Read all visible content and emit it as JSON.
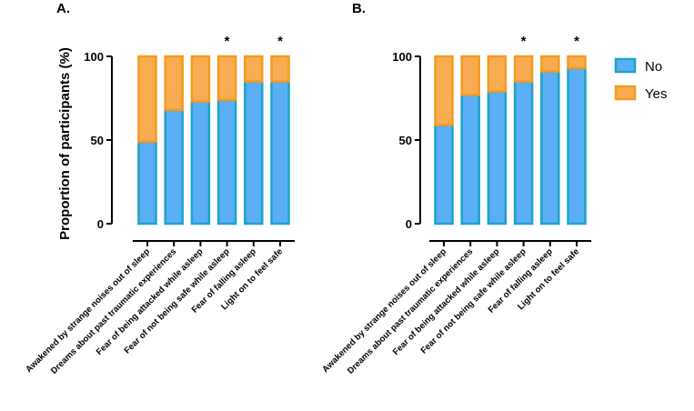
{
  "chart_data": [
    {
      "type": "bar",
      "stacked": true,
      "panel_label": "A.",
      "ylabel": "Proportion of participants (%)",
      "ylim": [
        0,
        100
      ],
      "yticks": [
        "0",
        "50",
        "100"
      ],
      "categories": [
        "Awakened by strange noises out of sleep",
        "Dreams about past traumatic experiences",
        "Fear of being attacked while asleep",
        "Fear of not being safe while asleep",
        "Fear of falling asleep",
        "Light on to feel safe"
      ],
      "significance": [
        "",
        "",
        "",
        "*",
        "",
        "*"
      ],
      "series": [
        {
          "name": "No",
          "values": [
            49,
            68,
            73,
            74,
            85,
            85
          ]
        },
        {
          "name": "Yes",
          "values": [
            51,
            32,
            27,
            26,
            15,
            15
          ]
        }
      ]
    },
    {
      "type": "bar",
      "stacked": true,
      "panel_label": "B.",
      "ylabel": "",
      "ylim": [
        0,
        100
      ],
      "yticks": [
        "0",
        "50",
        "100"
      ],
      "categories": [
        "Awakened by strange noises out of sleep",
        "Dreams about past traumatic experiences",
        "Fear of being attacked while asleep",
        "Fear of not being safe while asleep",
        "Fear of falling asleep",
        "Light on to feel safe"
      ],
      "significance": [
        "",
        "",
        "",
        "*",
        "",
        "*"
      ],
      "series": [
        {
          "name": "No",
          "values": [
            59,
            77,
            79,
            85,
            91,
            93
          ]
        },
        {
          "name": "Yes",
          "values": [
            41,
            23,
            21,
            15,
            9,
            7
          ]
        }
      ]
    }
  ],
  "legend": [
    {
      "label": "No",
      "fill": "#5aaef5",
      "stroke": "#1ba3c6"
    },
    {
      "label": "Yes",
      "fill": "#f8ad52",
      "stroke": "#f59a1e"
    }
  ],
  "colors": {
    "no_fill": "#5aaef5",
    "no_stroke": "#1ba3c6",
    "yes_fill": "#f8ad52",
    "yes_stroke": "#f59a1e",
    "axis": "#000000"
  }
}
